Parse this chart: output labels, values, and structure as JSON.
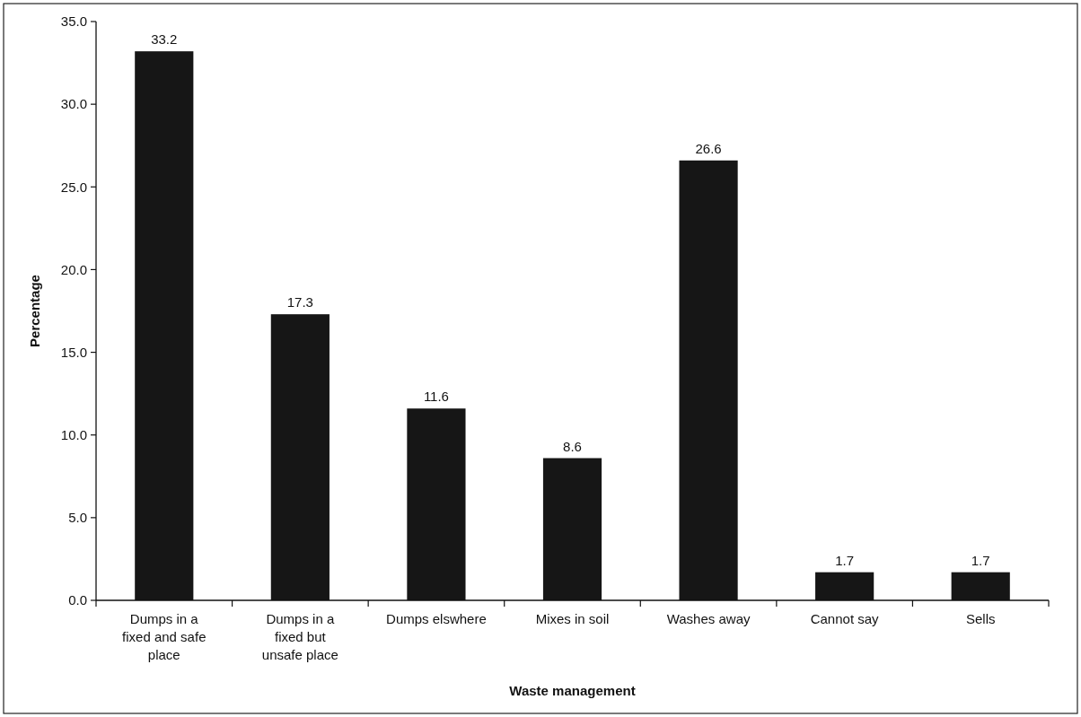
{
  "chart_data": {
    "type": "bar",
    "xlabel": "Waste management",
    "ylabel": "Percentage",
    "categories": [
      "Dumps in a fixed and safe place",
      "Dumps in a fixed but unsafe place",
      "Dumps elswhere",
      "Mixes in soil",
      "Washes away",
      "Cannot say",
      "Sells"
    ],
    "values": [
      33.2,
      17.3,
      11.6,
      8.6,
      26.6,
      1.7,
      1.7
    ],
    "color": "#161616",
    "ylim": [
      0,
      35
    ],
    "yticks": [
      {
        "value": 0,
        "label": "0.0"
      },
      {
        "value": 5,
        "label": "5.0"
      },
      {
        "value": 10,
        "label": "10.0"
      },
      {
        "value": 15,
        "label": "15.0"
      },
      {
        "value": 20,
        "label": "20.0"
      },
      {
        "value": 25,
        "label": "25.0"
      },
      {
        "value": 30,
        "label": "30.0"
      },
      {
        "value": 35,
        "label": "35.0"
      }
    ],
    "data_labels": true
  }
}
